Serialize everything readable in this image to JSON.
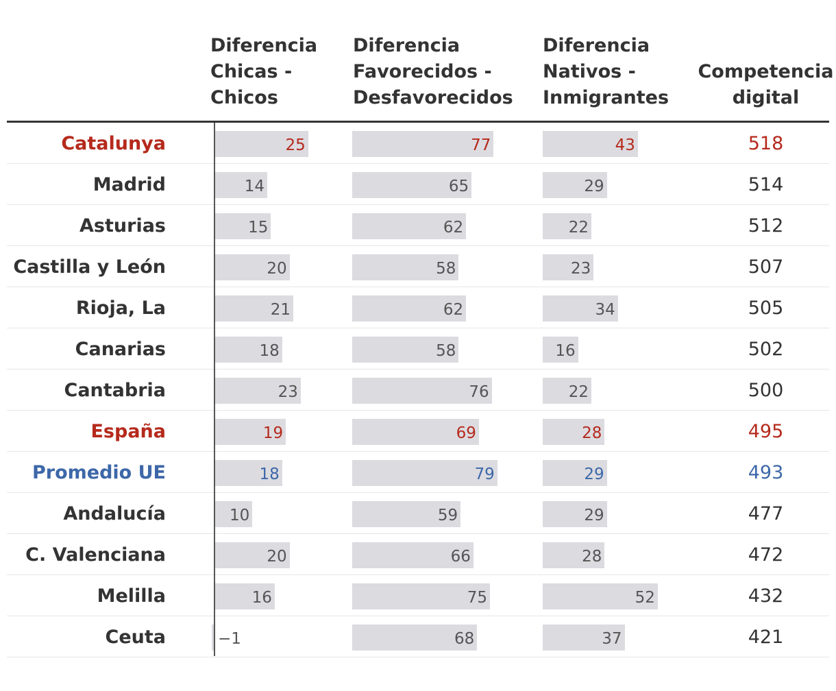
{
  "chart_data": {
    "type": "table",
    "title": "",
    "columns": [
      {
        "key": "gender_gap",
        "label": [
          "Diferencia",
          "Chicas -",
          "Chicos"
        ]
      },
      {
        "key": "ses_gap",
        "label": [
          "Diferencia",
          "Favorecidos -",
          "Desfavorecidos"
        ]
      },
      {
        "key": "native_gap",
        "label": [
          "Diferencia",
          "Nativos -",
          "Inmigrantes"
        ]
      },
      {
        "key": "digital_score",
        "label": [
          "Competencia",
          "digital"
        ]
      }
    ],
    "rows": [
      {
        "region": "Catalunya",
        "highlight": "red",
        "gender_gap": 25,
        "gender_gap_text": "25",
        "ses_gap": 77,
        "ses_gap_text": "77",
        "native_gap": 43,
        "native_gap_text": "43",
        "digital_score": "518"
      },
      {
        "region": "Madrid",
        "highlight": "none",
        "gender_gap": 14,
        "gender_gap_text": "14",
        "ses_gap": 65,
        "ses_gap_text": "65",
        "native_gap": 29,
        "native_gap_text": "29",
        "digital_score": "514"
      },
      {
        "region": "Asturias",
        "highlight": "none",
        "gender_gap": 15,
        "gender_gap_text": "15",
        "ses_gap": 62,
        "ses_gap_text": "62",
        "native_gap": 22,
        "native_gap_text": "22",
        "digital_score": "512"
      },
      {
        "region": "Castilla y León",
        "highlight": "none",
        "gender_gap": 20,
        "gender_gap_text": "20",
        "ses_gap": 58,
        "ses_gap_text": "58",
        "native_gap": 23,
        "native_gap_text": "23",
        "digital_score": "507"
      },
      {
        "region": "Rioja, La",
        "highlight": "none",
        "gender_gap": 21,
        "gender_gap_text": "21",
        "ses_gap": 62,
        "ses_gap_text": "62",
        "native_gap": 34,
        "native_gap_text": "34",
        "digital_score": "505"
      },
      {
        "region": "Canarias",
        "highlight": "none",
        "gender_gap": 18,
        "gender_gap_text": "18",
        "ses_gap": 58,
        "ses_gap_text": "58",
        "native_gap": 16,
        "native_gap_text": "16",
        "digital_score": "502"
      },
      {
        "region": "Cantabria",
        "highlight": "none",
        "gender_gap": 23,
        "gender_gap_text": "23",
        "ses_gap": 76,
        "ses_gap_text": "76",
        "native_gap": 22,
        "native_gap_text": "22",
        "digital_score": "500"
      },
      {
        "region": "España",
        "highlight": "red",
        "gender_gap": 19,
        "gender_gap_text": "19",
        "ses_gap": 69,
        "ses_gap_text": "69",
        "native_gap": 28,
        "native_gap_text": "28",
        "digital_score": "495"
      },
      {
        "region": "Promedio UE",
        "highlight": "blue",
        "gender_gap": 18,
        "gender_gap_text": "18",
        "ses_gap": 79,
        "ses_gap_text": "79",
        "native_gap": 29,
        "native_gap_text": "29",
        "digital_score": "493"
      },
      {
        "region": "Andalucía",
        "highlight": "none",
        "gender_gap": 10,
        "gender_gap_text": "10",
        "ses_gap": 59,
        "ses_gap_text": "59",
        "native_gap": 29,
        "native_gap_text": "29",
        "digital_score": "477"
      },
      {
        "region": "C. Valenciana",
        "highlight": "none",
        "gender_gap": 20,
        "gender_gap_text": "20",
        "ses_gap": 66,
        "ses_gap_text": "66",
        "native_gap": 28,
        "native_gap_text": "28",
        "digital_score": "472"
      },
      {
        "region": "Melilla",
        "highlight": "none",
        "gender_gap": 16,
        "gender_gap_text": "16",
        "ses_gap": 75,
        "ses_gap_text": "75",
        "native_gap": 52,
        "native_gap_text": "52",
        "digital_score": "432"
      },
      {
        "region": "Ceuta",
        "highlight": "none",
        "gender_gap": -1,
        "gender_gap_text": "−1",
        "ses_gap": 68,
        "ses_gap_text": "68",
        "native_gap": 37,
        "native_gap_text": "37",
        "digital_score": "421"
      }
    ]
  },
  "colors": {
    "text": "#333333",
    "red": "#b52a1c",
    "blue": "#3d67a8",
    "bar": "#dcdbe0",
    "value_default": "#555555"
  }
}
